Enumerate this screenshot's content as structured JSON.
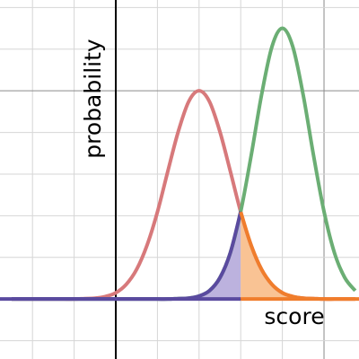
{
  "chart_data": {
    "type": "line",
    "x_label": "score",
    "y_label": "probability",
    "x": [
      -2.5,
      -2.25,
      -2,
      -1.75,
      -1.5,
      -1.25,
      -1,
      -0.75,
      -0.5,
      -0.25,
      0,
      0.25,
      0.5,
      0.75,
      1,
      1.25,
      1.5,
      1.75,
      2,
      2.25,
      2.5,
      2.75,
      3,
      3.25,
      3.5,
      3.75,
      4,
      4.25,
      4.5,
      4.75,
      5,
      5.25,
      5.5,
      5.75
    ],
    "series": [
      {
        "color": "#d7797b",
        "values": [
          0,
          0,
          0,
          0,
          0,
          0,
          0,
          0.01,
          0.02,
          0.06,
          0.15,
          0.35,
          0.71,
          1.29,
          2.09,
          3.07,
          4.02,
          4.74,
          5,
          4.74,
          4.02,
          3.07,
          2.09,
          1.29,
          0.71,
          0.35,
          0.15,
          0.06,
          0.02,
          0.01,
          0,
          0,
          0,
          0
        ]
      },
      {
        "color": "#6bae74",
        "values": [
          0,
          0,
          0,
          0,
          0,
          0,
          0,
          0,
          0,
          0,
          0,
          0,
          0,
          0,
          0,
          0,
          0.01,
          0.02,
          0.07,
          0.2,
          0.51,
          1.11,
          2.1,
          3.44,
          4.9,
          6.06,
          6.5,
          6.06,
          4.9,
          3.44,
          2.1,
          1.11,
          0.51,
          0.2
        ]
      }
    ],
    "shade_boundary": 3,
    "left_shade": {
      "series": 1,
      "line_color": "#5a4a9f",
      "fill_color": "#bcb2de"
    },
    "right_shade": {
      "series": 0,
      "line_color": "#f07d2c",
      "fill_color": "#f9c394"
    },
    "xlim": [
      -2.78,
      5.84
    ],
    "ylim": [
      -1.44,
      7.18
    ],
    "xticks": [
      -2,
      -1,
      0,
      1,
      2,
      3,
      4,
      5
    ],
    "yticks": [
      -1,
      0,
      1,
      2,
      3,
      4,
      5,
      6,
      7
    ],
    "grid": true
  }
}
